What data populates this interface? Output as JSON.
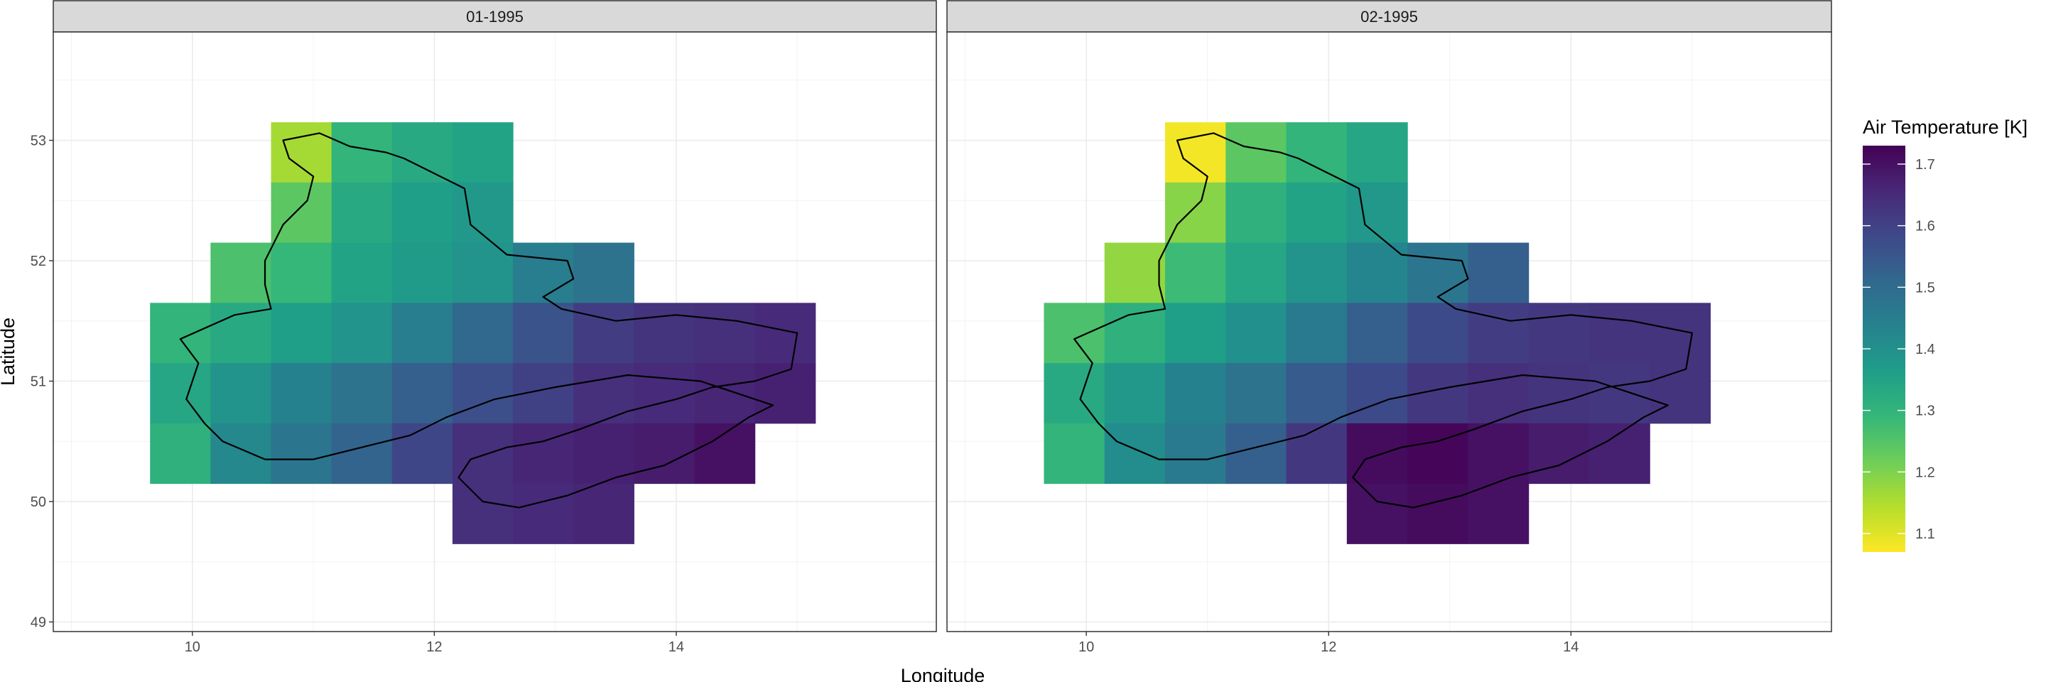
{
  "chart_data": {
    "type": "heatmap",
    "xlabel": "Longitude",
    "ylabel": "Latitude",
    "xlim": [
      8.85,
      16.15
    ],
    "ylim": [
      48.92,
      53.9
    ],
    "x_ticks": [
      10,
      12,
      14
    ],
    "y_ticks": [
      49,
      50,
      51,
      52,
      53
    ],
    "grid": true,
    "cell_size_deg": 0.5,
    "color_scale": {
      "title": "Air Temperature [K]",
      "palette": "viridis (reversed: low = yellow, high = purple)",
      "range": [
        1.07,
        1.73
      ],
      "ticks": [
        1.1,
        1.2,
        1.3,
        1.4,
        1.5,
        1.6,
        1.7
      ],
      "stops": [
        "#fde725",
        "#b5de2b",
        "#6ece58",
        "#35b779",
        "#1f9e89",
        "#26828e",
        "#31688e",
        "#3e4989",
        "#482878",
        "#440154"
      ]
    },
    "legend_position": "right",
    "panels": [
      {
        "label": "01-1995",
        "columns": [
          9.9,
          10.4,
          10.9,
          11.4,
          11.9,
          12.4,
          12.9,
          13.4,
          13.9,
          14.4,
          14.9
        ],
        "rows": [
          {
            "lat": 52.9,
            "values": [
              null,
              null,
              1.16,
              1.3,
              1.33,
              1.35,
              null,
              null,
              null,
              null,
              null
            ]
          },
          {
            "lat": 52.4,
            "values": [
              null,
              null,
              1.24,
              1.33,
              1.36,
              1.38,
              null,
              null,
              null,
              null,
              null
            ]
          },
          {
            "lat": 51.9,
            "values": [
              null,
              1.26,
              1.29,
              1.35,
              1.37,
              1.39,
              1.45,
              1.48,
              null,
              null,
              null
            ]
          },
          {
            "lat": 51.4,
            "values": [
              1.3,
              1.33,
              1.36,
              1.39,
              1.45,
              1.51,
              1.56,
              1.61,
              1.63,
              1.64,
              1.65
            ]
          },
          {
            "lat": 50.9,
            "values": [
              1.34,
              1.39,
              1.44,
              1.48,
              1.53,
              1.57,
              1.6,
              1.64,
              1.65,
              1.66,
              1.67
            ]
          },
          {
            "lat": 50.4,
            "values": [
              1.31,
              1.42,
              1.47,
              1.52,
              1.59,
              1.64,
              1.66,
              1.67,
              1.68,
              1.7,
              null
            ]
          },
          {
            "lat": 49.9,
            "values": [
              null,
              null,
              null,
              null,
              null,
              1.64,
              1.65,
              1.66,
              null,
              null,
              null
            ]
          }
        ]
      },
      {
        "label": "02-1995",
        "columns": [
          9.9,
          10.4,
          10.9,
          11.4,
          11.9,
          12.4,
          12.9,
          13.4,
          13.9,
          14.4,
          14.9
        ],
        "rows": [
          {
            "lat": 52.9,
            "values": [
              null,
              null,
              1.08,
              1.24,
              1.3,
              1.34,
              null,
              null,
              null,
              null,
              null
            ]
          },
          {
            "lat": 52.4,
            "values": [
              null,
              null,
              1.19,
              1.31,
              1.35,
              1.38,
              null,
              null,
              null,
              null,
              null
            ]
          },
          {
            "lat": 51.9,
            "values": [
              null,
              1.18,
              1.28,
              1.34,
              1.39,
              1.43,
              1.47,
              1.53,
              null,
              null,
              null
            ]
          },
          {
            "lat": 51.4,
            "values": [
              1.26,
              1.31,
              1.36,
              1.4,
              1.46,
              1.53,
              1.58,
              1.61,
              1.62,
              1.63,
              1.63
            ]
          },
          {
            "lat": 50.9,
            "values": [
              1.33,
              1.38,
              1.44,
              1.48,
              1.54,
              1.58,
              1.62,
              1.64,
              1.63,
              1.62,
              1.63
            ]
          },
          {
            "lat": 50.4,
            "values": [
              1.3,
              1.41,
              1.46,
              1.53,
              1.62,
              1.71,
              1.72,
              1.7,
              1.68,
              1.67,
              null
            ]
          },
          {
            "lat": 49.9,
            "values": [
              null,
              null,
              null,
              null,
              null,
              1.7,
              1.71,
              1.7,
              null,
              null,
              null
            ]
          }
        ]
      }
    ],
    "overlay": "region boundary outline (black)"
  }
}
